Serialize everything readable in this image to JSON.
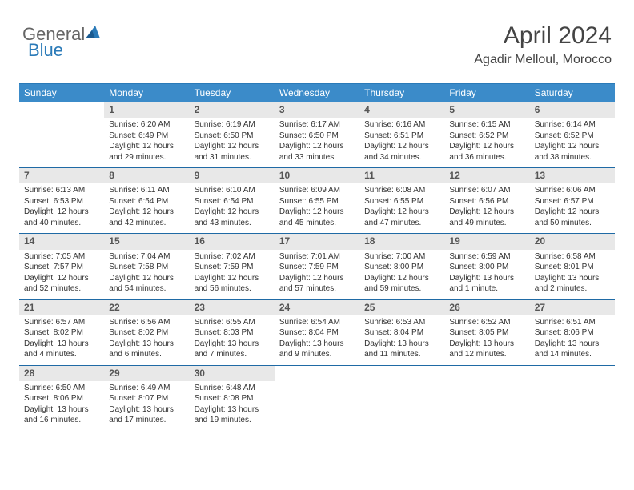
{
  "logo": {
    "text1": "General",
    "text2": "Blue",
    "accent_color": "#2a7ab8"
  },
  "header": {
    "month": "April 2024",
    "location": "Agadir Melloul, Morocco"
  },
  "colors": {
    "header_bar": "#3b8bc9",
    "header_rule": "#2a7ab8",
    "week_rule": "#1f6aa5",
    "daynum_bg": "#e8e8e8",
    "text": "#333333"
  },
  "dow": [
    "Sunday",
    "Monday",
    "Tuesday",
    "Wednesday",
    "Thursday",
    "Friday",
    "Saturday"
  ],
  "weeks": [
    [
      null,
      {
        "n": "1",
        "sr": "Sunrise: 6:20 AM",
        "ss": "Sunset: 6:49 PM",
        "dl": "Daylight: 12 hours and 29 minutes."
      },
      {
        "n": "2",
        "sr": "Sunrise: 6:19 AM",
        "ss": "Sunset: 6:50 PM",
        "dl": "Daylight: 12 hours and 31 minutes."
      },
      {
        "n": "3",
        "sr": "Sunrise: 6:17 AM",
        "ss": "Sunset: 6:50 PM",
        "dl": "Daylight: 12 hours and 33 minutes."
      },
      {
        "n": "4",
        "sr": "Sunrise: 6:16 AM",
        "ss": "Sunset: 6:51 PM",
        "dl": "Daylight: 12 hours and 34 minutes."
      },
      {
        "n": "5",
        "sr": "Sunrise: 6:15 AM",
        "ss": "Sunset: 6:52 PM",
        "dl": "Daylight: 12 hours and 36 minutes."
      },
      {
        "n": "6",
        "sr": "Sunrise: 6:14 AM",
        "ss": "Sunset: 6:52 PM",
        "dl": "Daylight: 12 hours and 38 minutes."
      }
    ],
    [
      {
        "n": "7",
        "sr": "Sunrise: 6:13 AM",
        "ss": "Sunset: 6:53 PM",
        "dl": "Daylight: 12 hours and 40 minutes."
      },
      {
        "n": "8",
        "sr": "Sunrise: 6:11 AM",
        "ss": "Sunset: 6:54 PM",
        "dl": "Daylight: 12 hours and 42 minutes."
      },
      {
        "n": "9",
        "sr": "Sunrise: 6:10 AM",
        "ss": "Sunset: 6:54 PM",
        "dl": "Daylight: 12 hours and 43 minutes."
      },
      {
        "n": "10",
        "sr": "Sunrise: 6:09 AM",
        "ss": "Sunset: 6:55 PM",
        "dl": "Daylight: 12 hours and 45 minutes."
      },
      {
        "n": "11",
        "sr": "Sunrise: 6:08 AM",
        "ss": "Sunset: 6:55 PM",
        "dl": "Daylight: 12 hours and 47 minutes."
      },
      {
        "n": "12",
        "sr": "Sunrise: 6:07 AM",
        "ss": "Sunset: 6:56 PM",
        "dl": "Daylight: 12 hours and 49 minutes."
      },
      {
        "n": "13",
        "sr": "Sunrise: 6:06 AM",
        "ss": "Sunset: 6:57 PM",
        "dl": "Daylight: 12 hours and 50 minutes."
      }
    ],
    [
      {
        "n": "14",
        "sr": "Sunrise: 7:05 AM",
        "ss": "Sunset: 7:57 PM",
        "dl": "Daylight: 12 hours and 52 minutes."
      },
      {
        "n": "15",
        "sr": "Sunrise: 7:04 AM",
        "ss": "Sunset: 7:58 PM",
        "dl": "Daylight: 12 hours and 54 minutes."
      },
      {
        "n": "16",
        "sr": "Sunrise: 7:02 AM",
        "ss": "Sunset: 7:59 PM",
        "dl": "Daylight: 12 hours and 56 minutes."
      },
      {
        "n": "17",
        "sr": "Sunrise: 7:01 AM",
        "ss": "Sunset: 7:59 PM",
        "dl": "Daylight: 12 hours and 57 minutes."
      },
      {
        "n": "18",
        "sr": "Sunrise: 7:00 AM",
        "ss": "Sunset: 8:00 PM",
        "dl": "Daylight: 12 hours and 59 minutes."
      },
      {
        "n": "19",
        "sr": "Sunrise: 6:59 AM",
        "ss": "Sunset: 8:00 PM",
        "dl": "Daylight: 13 hours and 1 minute."
      },
      {
        "n": "20",
        "sr": "Sunrise: 6:58 AM",
        "ss": "Sunset: 8:01 PM",
        "dl": "Daylight: 13 hours and 2 minutes."
      }
    ],
    [
      {
        "n": "21",
        "sr": "Sunrise: 6:57 AM",
        "ss": "Sunset: 8:02 PM",
        "dl": "Daylight: 13 hours and 4 minutes."
      },
      {
        "n": "22",
        "sr": "Sunrise: 6:56 AM",
        "ss": "Sunset: 8:02 PM",
        "dl": "Daylight: 13 hours and 6 minutes."
      },
      {
        "n": "23",
        "sr": "Sunrise: 6:55 AM",
        "ss": "Sunset: 8:03 PM",
        "dl": "Daylight: 13 hours and 7 minutes."
      },
      {
        "n": "24",
        "sr": "Sunrise: 6:54 AM",
        "ss": "Sunset: 8:04 PM",
        "dl": "Daylight: 13 hours and 9 minutes."
      },
      {
        "n": "25",
        "sr": "Sunrise: 6:53 AM",
        "ss": "Sunset: 8:04 PM",
        "dl": "Daylight: 13 hours and 11 minutes."
      },
      {
        "n": "26",
        "sr": "Sunrise: 6:52 AM",
        "ss": "Sunset: 8:05 PM",
        "dl": "Daylight: 13 hours and 12 minutes."
      },
      {
        "n": "27",
        "sr": "Sunrise: 6:51 AM",
        "ss": "Sunset: 8:06 PM",
        "dl": "Daylight: 13 hours and 14 minutes."
      }
    ],
    [
      {
        "n": "28",
        "sr": "Sunrise: 6:50 AM",
        "ss": "Sunset: 8:06 PM",
        "dl": "Daylight: 13 hours and 16 minutes."
      },
      {
        "n": "29",
        "sr": "Sunrise: 6:49 AM",
        "ss": "Sunset: 8:07 PM",
        "dl": "Daylight: 13 hours and 17 minutes."
      },
      {
        "n": "30",
        "sr": "Sunrise: 6:48 AM",
        "ss": "Sunset: 8:08 PM",
        "dl": "Daylight: 13 hours and 19 minutes."
      },
      null,
      null,
      null,
      null
    ]
  ]
}
